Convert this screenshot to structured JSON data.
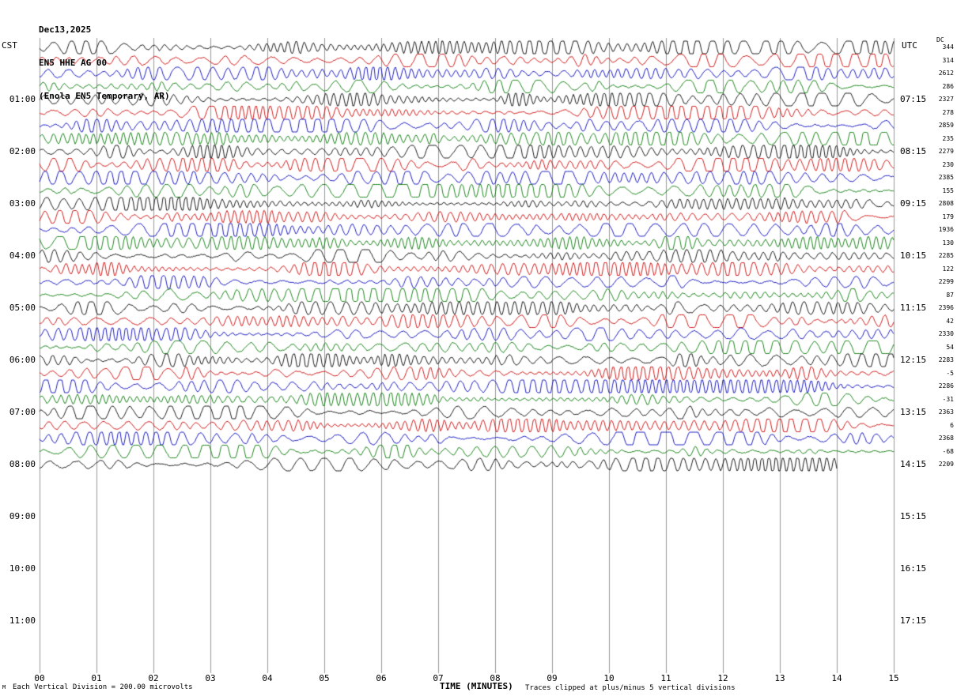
{
  "title": {
    "date": "Dec13,2025",
    "station": "EN5 HHE AG 00",
    "location": "(Enola EN5 Temporary, AR)"
  },
  "left_axis": {
    "header": "CST",
    "labels": [
      "01:00",
      "02:00",
      "03:00",
      "04:00",
      "05:00",
      "06:00",
      "07:00",
      "08:00",
      "09:00",
      "10:00",
      "11:00"
    ]
  },
  "right_axis": {
    "header": "UTC",
    "labels": [
      "07:15",
      "08:15",
      "09:15",
      "10:15",
      "11:15",
      "12:15",
      "13:15",
      "14:15",
      "15:15",
      "16:15",
      "17:15"
    ]
  },
  "x_axis": {
    "label": "TIME (MINUTES)",
    "ticks": [
      "00",
      "01",
      "02",
      "03",
      "04",
      "05",
      "06",
      "07",
      "08",
      "09",
      "10",
      "11",
      "12",
      "13",
      "14",
      "15"
    ]
  },
  "footer": {
    "mark": "M",
    "left": "Each Vertical Division =  200.00 microvolts",
    "right": "Traces clipped at plus/minus 5 vertical divisions"
  },
  "dc_column": {
    "header": "DC"
  },
  "colors": {
    "background": "#ffffff",
    "grid": "#999999",
    "text": "#000000",
    "trace_colors": {
      "black": "#000000",
      "red": "#cc0000",
      "blue": "#0000bb",
      "green": "#007700"
    }
  },
  "chart_data": {
    "type": "line",
    "subtype": "helicorder-seismogram",
    "title": "EN5 HHE AG 00 (Enola EN5 Temporary, AR) Dec13,2025",
    "xlabel": "TIME (MINUTES)",
    "x_range_minutes": [
      0,
      15
    ],
    "minutes_per_trace": 15,
    "traces_per_hour": 4,
    "vertical_division_microvolts": 200.0,
    "clip_divisions": 5,
    "timezone_left": "CST",
    "timezone_right": "UTC",
    "last_trace_end_minute": 14.0,
    "waveform_note": "continuous microseism background noise with intermittent small bursts; waveform rendered procedurally, traces clipped at plus/minus 5 vertical divisions",
    "traces": [
      {
        "start_cst": "00:00",
        "color": "black",
        "dc": 344
      },
      {
        "start_cst": "00:15",
        "color": "red",
        "dc": 314
      },
      {
        "start_cst": "00:30",
        "color": "blue",
        "dc": 2612
      },
      {
        "start_cst": "00:45",
        "color": "green",
        "dc": 286
      },
      {
        "start_cst": "01:00",
        "color": "black",
        "dc": 2327
      },
      {
        "start_cst": "01:15",
        "color": "red",
        "dc": 278
      },
      {
        "start_cst": "01:30",
        "color": "blue",
        "dc": 2859
      },
      {
        "start_cst": "01:45",
        "color": "green",
        "dc": 235
      },
      {
        "start_cst": "02:00",
        "color": "black",
        "dc": 2279
      },
      {
        "start_cst": "02:15",
        "color": "red",
        "dc": 230
      },
      {
        "start_cst": "02:30",
        "color": "blue",
        "dc": 2385
      },
      {
        "start_cst": "02:45",
        "color": "green",
        "dc": 155
      },
      {
        "start_cst": "03:00",
        "color": "black",
        "dc": 2808
      },
      {
        "start_cst": "03:15",
        "color": "red",
        "dc": 179
      },
      {
        "start_cst": "03:30",
        "color": "blue",
        "dc": 1936
      },
      {
        "start_cst": "03:45",
        "color": "green",
        "dc": 130
      },
      {
        "start_cst": "04:00",
        "color": "black",
        "dc": 2285
      },
      {
        "start_cst": "04:15",
        "color": "red",
        "dc": 122
      },
      {
        "start_cst": "04:30",
        "color": "blue",
        "dc": 2299
      },
      {
        "start_cst": "04:45",
        "color": "green",
        "dc": 87
      },
      {
        "start_cst": "05:00",
        "color": "black",
        "dc": 2396
      },
      {
        "start_cst": "05:15",
        "color": "red",
        "dc": 42
      },
      {
        "start_cst": "05:30",
        "color": "blue",
        "dc": 2330
      },
      {
        "start_cst": "05:45",
        "color": "green",
        "dc": 54
      },
      {
        "start_cst": "06:00",
        "color": "black",
        "dc": 2283
      },
      {
        "start_cst": "06:15",
        "color": "red",
        "dc": -5
      },
      {
        "start_cst": "06:30",
        "color": "blue",
        "dc": 2286
      },
      {
        "start_cst": "06:45",
        "color": "green",
        "dc": -31
      },
      {
        "start_cst": "07:00",
        "color": "black",
        "dc": 2363
      },
      {
        "start_cst": "07:15",
        "color": "red",
        "dc": 6
      },
      {
        "start_cst": "07:30",
        "color": "blue",
        "dc": 2368
      },
      {
        "start_cst": "07:45",
        "color": "green",
        "dc": -68
      },
      {
        "start_cst": "08:00",
        "color": "black",
        "dc": 2209
      }
    ]
  }
}
